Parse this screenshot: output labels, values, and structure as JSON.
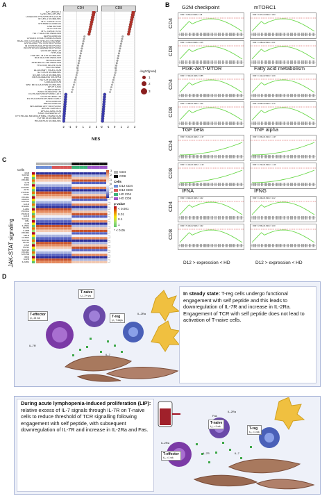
{
  "panels": {
    "A": "A",
    "B": "B",
    "C": "C",
    "D": "D"
  },
  "panelA": {
    "facets": [
      "CD4",
      "CD8"
    ],
    "pathways": [
      "E2F TARGETS",
      "G2M CHECKPOINT",
      "OXIDATIVE PHOSPHORYLATION",
      "MTORC1 SIGNALING",
      "MYC TARGETS V1",
      "SPERMATOGENESIS",
      "DNA REPAIR",
      "GLYCOLYSIS",
      "MYC TARGETS V2",
      "FATTY ACID METABOLISM",
      "ADIPOGENESIS",
      "CHOLESTEROL HOMEOSTASIS",
      "REACTIVE OXYGEN SPECIES PATHWAY",
      "UNFOLDED PROTEIN RESPONSE",
      "INTERFERON ALPHA RESPONSE",
      "INTERFERON GAMMA RESPONSE",
      "UV RESPONSE UP",
      "HYPOXIA",
      "PI3K AKT MTOR SIGNALING",
      "BILE ACID METABOLISM",
      "PEROXISOME",
      "XENOBIOTIC METABOLISM",
      "PROTEIN SECRETION",
      "P53 PATHWAY",
      "ALLOGRAFT REJECTION",
      "IL2 STAT5 SIGNALING",
      "IL6 JAK STAT3 SIGNALING",
      "TNFA SIGNALING VIA NFKB",
      "NOTCH SIGNALING",
      "COAGULATION",
      "WNT BETA CATENIN SIGNALING",
      "APOPTOSIS",
      "COMPLEMENT",
      "KRAS SIGNALING DN",
      "ESTROGEN RESPONSE LATE",
      "UV RESPONSE DN",
      "ESTROGEN RESPONSE EARLY",
      "MYOGENESIS",
      "ANGIOGENESIS",
      "INFLAMMATORY RESPONSE",
      "APICAL SURFACE",
      "APICAL JUNCTION",
      "KRAS SIGNALING UP",
      "EPITHELIAL MESENCHYMAL TRANSITION",
      "TGF BETA SIGNALING",
      "HEDGEHOG SIGNALING"
    ],
    "xlabel": "NES",
    "xticks": [
      "-2",
      "-1",
      "0",
      "1",
      "2",
      "3"
    ],
    "legend_title": "-log10(pval)",
    "legend_values": [
      "1",
      "2",
      "3"
    ]
  },
  "panelB": {
    "condition_labels": [
      "CD4",
      "CD8"
    ],
    "axis_labels": [
      "D12 > expression < HD",
      "D12 > expression < HD"
    ],
    "gene_sets": [
      {
        "title": "G2M checkpoint",
        "stat_cd4": "FDR < 6.83e-04  NES = 2.8",
        "stat_cd8": "FDR = 1.03e-04  NES = 2.45"
      },
      {
        "title": "mTORC1",
        "stat_cd4": "FDR = 6.47e-04  NES = 1.83",
        "stat_cd8": "FDR = 1.28e-02  NES = 2.41"
      },
      {
        "title": "PI3K-AKT-MTOR",
        "stat_cd4": "FDR = 7.39e-01  NES = 0.85",
        "stat_cd8": "FDR = 4.38e-01  NES = 1.26"
      },
      {
        "title": "Fatty acid metabolism",
        "stat_cd4": "FDR = 1.12e-02  NES = 1.39",
        "stat_cd8": "FDR = 8.56e-03  NES = 1.75"
      },
      {
        "title": "TGF beta",
        "stat_cd4": "FDR = 6.23e-01  NES = -1.37",
        "stat_cd8": "FDR = 1.13e-01  NES = -1.32"
      },
      {
        "title": "TNF alpha",
        "stat_cd4": "FDR = 1.56e-01  NES = -1.37",
        "stat_cd8": "FDR = 1.73e-01  NES = -1.16"
      },
      {
        "title": "IFNA",
        "stat_cd4": "FDR = 4.96e-01  NES = 1.22",
        "stat_cd8": "FDR = 5.15e-02  NES = 1.92"
      },
      {
        "title": "IFNG",
        "stat_cd4": "FDR = 1.49e-01  NES = 1.12",
        "stat_cd8": "FDR = 2.56e-01  NES = 1.30"
      }
    ]
  },
  "panelC": {
    "ylabel": "JAK-STAT signaling",
    "cells_label": "Cells",
    "genes": [
      "IL6R",
      "SOCS3",
      "PIM1",
      "PIK3R4",
      "IL7R",
      "JAK2",
      "IFNGR2",
      "AKT1",
      "PTPN11",
      "SOS1",
      "PIK3R1",
      "MAPK3",
      "STAT5A",
      "IL21R",
      "IFNAR2",
      "IL2RA",
      "PIK3CA",
      "PIK3CD",
      "IL21R",
      "SOCS1",
      "CBL",
      "IL4R",
      "IL15RA",
      "STAT3",
      "IL2RB",
      "PIK3R4",
      "CBLB",
      "CCND3",
      "SOCS2",
      "STAT6",
      "CISH",
      "PIAS1",
      "SOCS5",
      "PIK3R1",
      "STAT5B",
      "IRF9",
      "IL22R",
      "IL22RA"
    ],
    "scale_values": [
      "3",
      "2",
      "1",
      "0",
      "-1",
      "-2",
      "-3"
    ],
    "legend_cells": [
      "CD4",
      "CD8"
    ],
    "legend_groups": [
      "D12 CD4",
      "D12 CD8",
      "HD CD4",
      "HD CD8"
    ],
    "pvalue_title": "p-value",
    "pvalue_values": [
      "< 0.001",
      "0.01",
      "0.1",
      "1",
      "< 0.05"
    ]
  },
  "panelD": {
    "top_text_bold": "In steady state:",
    "top_text": " T-reg cells undergo functional engagement with self peptide and this leads to downregulation of IL-7R and increase in IL-2Ra. Engagement of TCR with self peptide does not lead to activation of T-naive cells.",
    "bottom_text_bold": "During acute lymphopenia-induced proliferation (LIP):",
    "bottom_text": " relative excess of IL-7 signals through IL-7R on T-naive cells to reduce threshold of TCR signalling following engagement with self peptide, with subsequent downregulation of IL-7R and increase in IL-2Ra and Fas.",
    "top_labels": {
      "tnaive": "T-naive",
      "tnaive_sub": "t₁/₂ 2+ yrs",
      "treg": "T-reg",
      "treg_sub": "t₁/₂ 7 days",
      "teff": "T-effector",
      "teff_sub": "t₁/₂ 24 wk",
      "il7r": "IL-7R",
      "il2ra": "IL-2Ra",
      "il7": "IL-7"
    },
    "bottom_labels": {
      "fas": "Fas",
      "il2ra": "IL-2Ra",
      "il2ra2": "IL-2Ra",
      "tnaive": "T-naive",
      "tnaive_sub": "t₁/₂ <1 wk",
      "treg": "T-reg",
      "treg_sub": "t₁/₂ <1 wk",
      "teff": "T-effector",
      "teff_sub": "t₁/₂ <1 wk",
      "il7r": "IL-7R",
      "il7": "IL-7"
    }
  }
}
